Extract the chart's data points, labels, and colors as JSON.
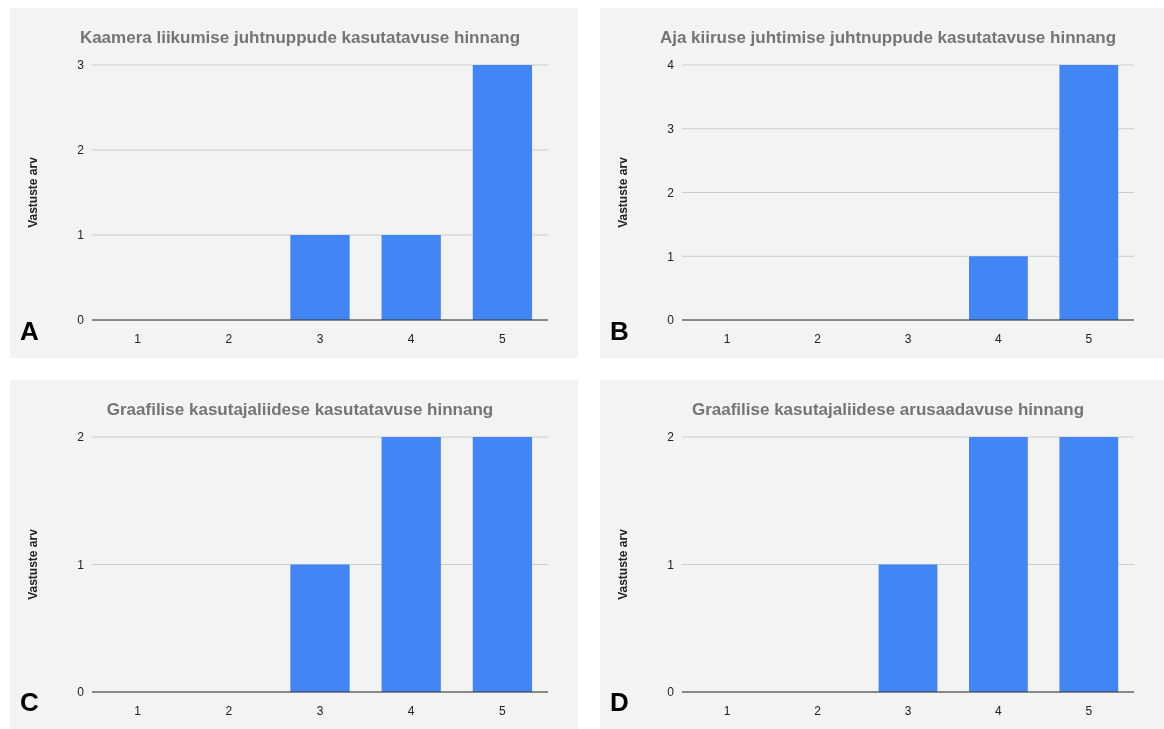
{
  "chart_data": [
    {
      "type": "bar",
      "title": "Kaamera liikumise juhtnuppude kasutatavuse hinnang",
      "ylabel": "Vastuste arv",
      "categories": [
        "1",
        "2",
        "3",
        "4",
        "5"
      ],
      "values": [
        0,
        0,
        1,
        1,
        3
      ],
      "color": "#4285f4",
      "ylim": [
        0,
        3
      ],
      "yticks": [
        0,
        1,
        2,
        3
      ],
      "grid": "y",
      "annotations": [
        "A"
      ]
    },
    {
      "type": "bar",
      "title": "Aja kiiruse juhtimise juhtnuppude kasutatavuse hinnang",
      "ylabel": "Vastuste arv",
      "categories": [
        "1",
        "2",
        "3",
        "4",
        "5"
      ],
      "values": [
        0,
        0,
        0,
        1,
        4
      ],
      "color": "#4285f4",
      "ylim": [
        0,
        4
      ],
      "yticks": [
        0,
        1,
        2,
        3,
        4
      ],
      "grid": "y",
      "annotations": [
        "B"
      ]
    },
    {
      "type": "bar",
      "title": "Graafilise kasutajaliidese kasutatavuse hinnang",
      "ylabel": "Vastuste arv",
      "categories": [
        "1",
        "2",
        "3",
        "4",
        "5"
      ],
      "values": [
        0,
        0,
        1,
        2,
        2
      ],
      "color": "#4285f4",
      "ylim": [
        0,
        2
      ],
      "yticks": [
        0,
        1,
        2
      ],
      "grid": "y",
      "annotations": [
        "C"
      ]
    },
    {
      "type": "bar",
      "title": "Graafilise kasutajaliidese arusaadavuse hinnang",
      "ylabel": "Vastuste arv",
      "categories": [
        "1",
        "2",
        "3",
        "4",
        "5"
      ],
      "values": [
        0,
        0,
        1,
        2,
        2
      ],
      "color": "#4285f4",
      "ylim": [
        0,
        2
      ],
      "yticks": [
        0,
        1,
        2
      ],
      "grid": "y",
      "annotations": [
        "D"
      ]
    }
  ]
}
